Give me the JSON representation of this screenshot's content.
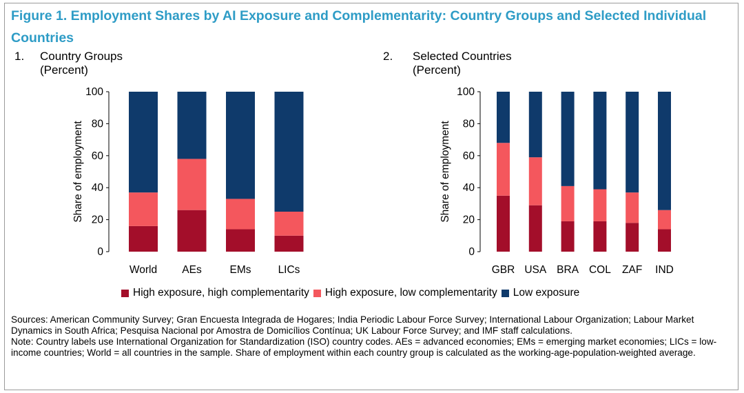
{
  "figure": {
    "title": "Figure 1.  Employment Shares by AI Exposure and Complementarity: Country Groups and Selected Individual Countries"
  },
  "panels": [
    {
      "number": "1.",
      "title": "Country Groups",
      "unit": "(Percent)"
    },
    {
      "number": "2.",
      "title": "Selected Countries",
      "unit": "(Percent)"
    }
  ],
  "colors": {
    "high_high": "#a30e2a",
    "high_low": "#f4575d",
    "low": "#0f3a6b"
  },
  "legend": [
    {
      "label": "High exposure, high complementarity",
      "color": "#a30e2a"
    },
    {
      "label": "High exposure, low complementarity",
      "color": "#f4575d"
    },
    {
      "label": "Low exposure",
      "color": "#0f3a6b"
    }
  ],
  "chart_data": [
    {
      "type": "bar",
      "stacked": true,
      "title": "Country Groups",
      "subtitle": "(Percent)",
      "ylabel": "Share of employment",
      "xlabel": "",
      "ylim": [
        0,
        100
      ],
      "yticks": [
        0,
        20,
        40,
        60,
        80,
        100
      ],
      "grid": false,
      "categories": [
        "World",
        "AEs",
        "EMs",
        "LICs"
      ],
      "series": [
        {
          "name": "High exposure, high complementarity",
          "values": [
            16,
            26,
            14,
            10
          ]
        },
        {
          "name": "High exposure, low complementarity",
          "values": [
            21,
            32,
            19,
            15
          ]
        },
        {
          "name": "Low exposure",
          "values": [
            63,
            42,
            67,
            75
          ]
        }
      ]
    },
    {
      "type": "bar",
      "stacked": true,
      "title": "Selected Countries",
      "subtitle": "(Percent)",
      "ylabel": "Share of employment",
      "xlabel": "",
      "ylim": [
        0,
        100
      ],
      "yticks": [
        0,
        20,
        40,
        60,
        80,
        100
      ],
      "grid": false,
      "categories": [
        "GBR",
        "USA",
        "BRA",
        "COL",
        "ZAF",
        "IND"
      ],
      "series": [
        {
          "name": "High exposure, high complementarity",
          "values": [
            35,
            29,
            19,
            19,
            18,
            14
          ]
        },
        {
          "name": "High exposure, low complementarity",
          "values": [
            33,
            30,
            22,
            20,
            19,
            12
          ]
        },
        {
          "name": "Low exposure",
          "values": [
            32,
            41,
            59,
            61,
            63,
            74
          ]
        }
      ]
    }
  ],
  "notes": {
    "sources": "Sources: American Community Survey; Gran Encuesta Integrada de Hogares; India Periodic Labour Force Survey; International Labour Organization; Labour Market Dynamics in South Africa; Pesquisa Nacional por Amostra de Domicílios Contínua; UK Labour Force Survey; and IMF staff calculations.",
    "note": "Note: Country labels use International Organization for Standardization (ISO) country codes. AEs = advanced economies; EMs = emerging market economies; LICs = low-income countries; World = all countries in the sample. Share of employment within each country group is calculated as the working-age-population-weighted average."
  }
}
